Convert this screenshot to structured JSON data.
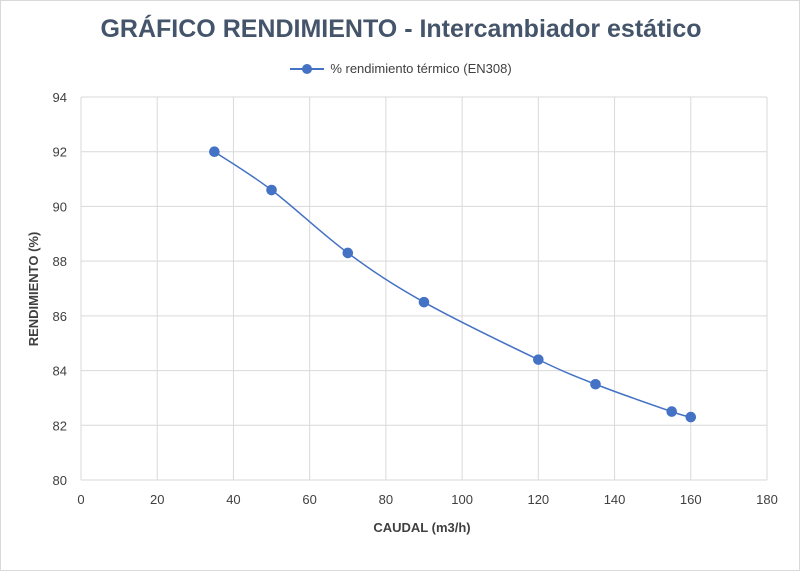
{
  "chart_data": {
    "type": "line",
    "title": "GRÁFICO RENDIMIENTO - Intercambiador estático",
    "xlabel": "CAUDAL (m3/h)",
    "ylabel": "RENDIMIENTO (%)",
    "xlim": [
      0,
      180
    ],
    "ylim": [
      80,
      94
    ],
    "xticks": [
      0,
      20,
      40,
      60,
      80,
      100,
      120,
      140,
      160,
      180
    ],
    "yticks": [
      80,
      82,
      84,
      86,
      88,
      90,
      92,
      94
    ],
    "grid": true,
    "legend_position": "top",
    "series": [
      {
        "name": "% rendimiento térmico (EN308)",
        "color": "#4472c4",
        "x": [
          35,
          50,
          70,
          90,
          120,
          135,
          155,
          160
        ],
        "y": [
          92.0,
          90.6,
          88.3,
          86.5,
          84.4,
          83.5,
          82.5,
          82.3
        ]
      }
    ]
  }
}
